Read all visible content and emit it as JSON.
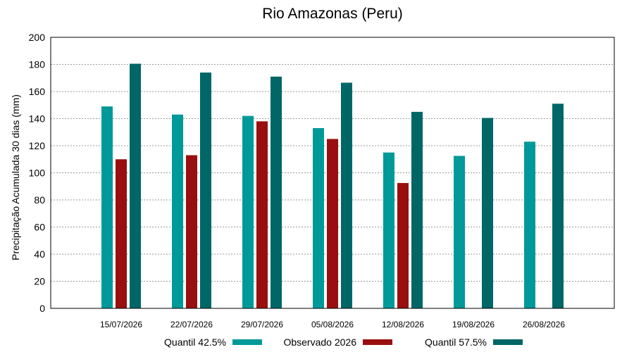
{
  "chart_data": {
    "type": "bar",
    "title": "Rio Amazonas (Peru)",
    "xlabel": "",
    "ylabel": "Precipitação Acumulada 30 dias (mm)",
    "ylim": [
      0,
      200
    ],
    "yticks": [
      0,
      20,
      40,
      60,
      80,
      100,
      120,
      140,
      160,
      180,
      200
    ],
    "grid": true,
    "legend_position": "bottom",
    "categories": [
      "15/07/2026",
      "22/07/2026",
      "29/07/2026",
      "05/08/2026",
      "12/08/2026",
      "19/08/2026",
      "26/08/2026"
    ],
    "series": [
      {
        "name": "Quantil 42.5%",
        "color": "#009999",
        "values": [
          149,
          143,
          142,
          133,
          115,
          112.5,
          123
        ]
      },
      {
        "name": "Observado 2026",
        "color": "#990f0f",
        "values": [
          110,
          113,
          138,
          125,
          92.5,
          null,
          null
        ]
      },
      {
        "name": "Quantil 57.5%",
        "color": "#006666",
        "values": [
          180.5,
          174,
          171,
          166.5,
          145,
          140.5,
          151
        ]
      }
    ]
  }
}
